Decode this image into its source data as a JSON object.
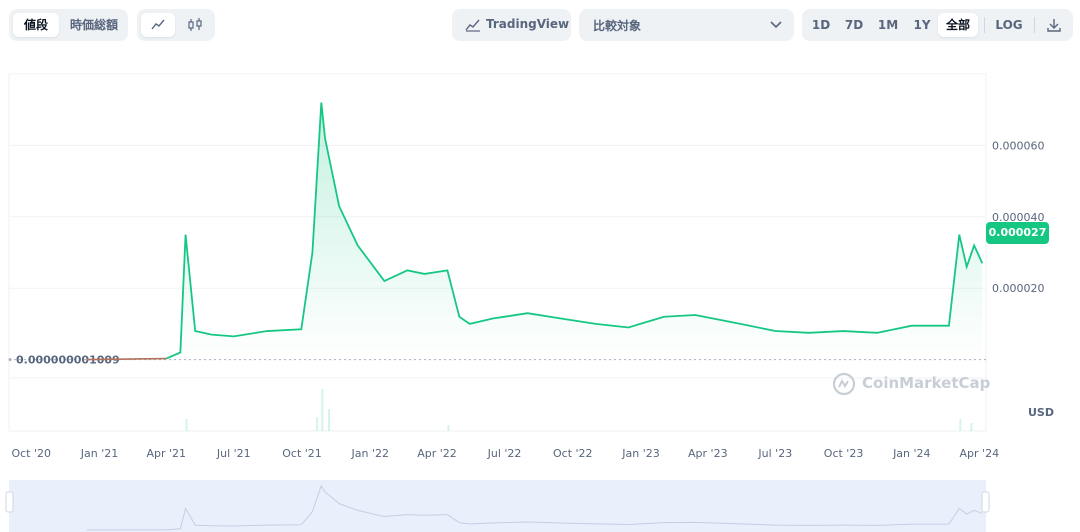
{
  "toolbar": {
    "view_tabs": [
      {
        "label": "値段",
        "active": true
      },
      {
        "label": "時価総額",
        "active": false
      }
    ],
    "chart_type": {
      "line_icon": "line-chart-icon",
      "candle_icon": "candlestick-icon",
      "active": "line"
    },
    "tradingview_label": "TradingView",
    "compare_label": "比較対象",
    "ranges": [
      {
        "label": "1D"
      },
      {
        "label": "7D"
      },
      {
        "label": "1M"
      },
      {
        "label": "1Y"
      },
      {
        "label": "全部",
        "active": true
      }
    ],
    "log_label": "LOG",
    "download_icon": "download-icon"
  },
  "colors": {
    "line": "#16c784",
    "bg": "#ffffff",
    "grid": "#eff2f5",
    "axis_text": "#58667e",
    "baseline": "#a6b0c3"
  },
  "watermark": "CoinMarketCap",
  "chart_data": {
    "type": "line",
    "title": "",
    "xlabel": "",
    "ylabel": "USD",
    "currency": "USD",
    "current_price": "0.000027",
    "baseline_label": "0.000000001009",
    "y_ticks": [
      "0.000020",
      "0.000040",
      "0.000060"
    ],
    "ylim": [
      -2e-05,
      8e-05
    ],
    "x_ticks": [
      "Oct '20",
      "Jan '21",
      "Apr '21",
      "Jul '21",
      "Oct '21",
      "Jan '22",
      "Apr '22",
      "Jul '22",
      "Oct '22",
      "Jan '23",
      "Apr '23",
      "Jul '23",
      "Oct '23",
      "Jan '24",
      "Apr '24"
    ],
    "x": [
      "2020-12-15",
      "2021-04-01",
      "2021-04-20",
      "2021-04-27",
      "2021-05-10",
      "2021-06-01",
      "2021-07-01",
      "2021-08-15",
      "2021-09-30",
      "2021-10-15",
      "2021-10-27",
      "2021-11-01",
      "2021-11-20",
      "2021-12-15",
      "2022-01-20",
      "2022-02-20",
      "2022-03-15",
      "2022-04-15",
      "2022-05-01",
      "2022-05-15",
      "2022-06-15",
      "2022-08-01",
      "2022-09-15",
      "2022-11-01",
      "2022-12-15",
      "2023-02-01",
      "2023-03-15",
      "2023-05-15",
      "2023-07-01",
      "2023-08-15",
      "2023-10-01",
      "2023-11-15",
      "2024-01-01",
      "2024-02-20",
      "2024-03-05",
      "2024-03-15",
      "2024-03-25",
      "2024-04-05"
    ],
    "values": [
      1.009e-09,
      3e-07,
      2e-06,
      3.5e-05,
      8e-06,
      7e-06,
      6.5e-06,
      8e-06,
      8.5e-06,
      3e-05,
      7.2e-05,
      6.2e-05,
      4.3e-05,
      3.2e-05,
      2.2e-05,
      2.5e-05,
      2.4e-05,
      2.5e-05,
      1.2e-05,
      1e-05,
      1.15e-05,
      1.3e-05,
      1.15e-05,
      1e-05,
      9e-06,
      1.2e-05,
      1.25e-05,
      1e-05,
      8e-06,
      7.5e-06,
      8e-06,
      7.5e-06,
      9.5e-06,
      9.5e-06,
      3.5e-05,
      2.6e-05,
      3.2e-05,
      2.7e-05
    ]
  }
}
